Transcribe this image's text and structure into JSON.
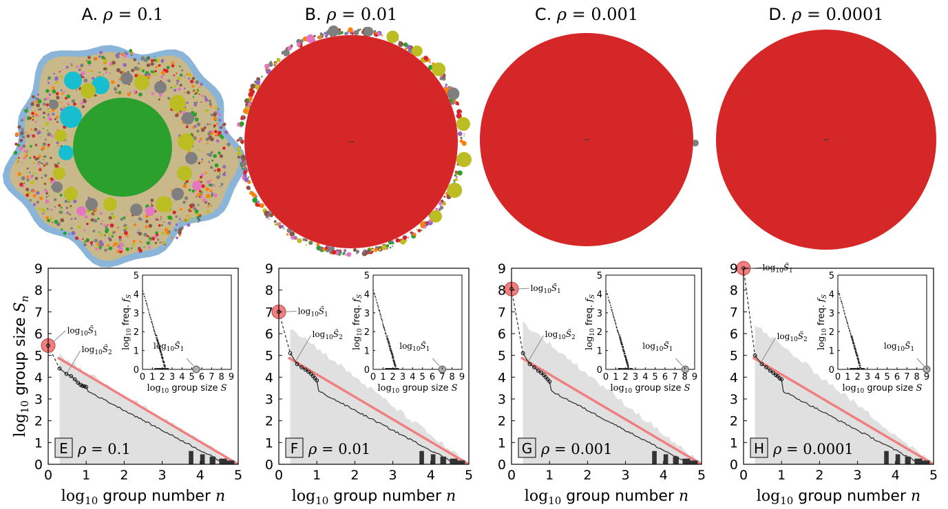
{
  "chart_data": {
    "top_panels": [
      {
        "id": "A",
        "title": "A. ρ = 0.1",
        "rho": 0.1,
        "main_color": "#2ca02c"
      },
      {
        "id": "B",
        "title": "B. ρ = 0.01",
        "rho": 0.01,
        "main_color": "#d62728"
      },
      {
        "id": "C",
        "title": "C. ρ = 0.001",
        "rho": 0.001,
        "main_color": "#d62728"
      },
      {
        "id": "D",
        "title": "D. ρ = 0.0001",
        "rho": 0.0001,
        "main_color": "#d62728"
      }
    ],
    "bottom_panels": [
      {
        "id": "E",
        "type": "line",
        "panel_label": "E",
        "rho_text": "ρ = 0.1",
        "largest_log_size": 5.45,
        "second_log_size": 4.4,
        "leading_points": [
          [
            0.3,
            4.4
          ],
          [
            0.48,
            4.15
          ],
          [
            0.6,
            4.05
          ],
          [
            0.7,
            3.9
          ],
          [
            0.78,
            3.75
          ],
          [
            0.85,
            3.65
          ],
          [
            0.9,
            3.6
          ],
          [
            0.95,
            3.58
          ],
          [
            1.0,
            3.55
          ]
        ],
        "gray_band_top": 5.0,
        "inset_largest_x": 5.45
      },
      {
        "id": "F",
        "type": "line",
        "panel_label": "F",
        "rho_text": "ρ = 0.01",
        "largest_log_size": 7.0,
        "second_log_size": 5.1,
        "leading_points": [
          [
            0.3,
            5.1
          ],
          [
            0.48,
            4.6
          ],
          [
            0.6,
            4.45
          ],
          [
            0.7,
            4.35
          ],
          [
            0.78,
            4.25
          ],
          [
            0.85,
            4.15
          ],
          [
            0.9,
            4.05
          ],
          [
            0.95,
            3.95
          ],
          [
            1.0,
            3.85
          ]
        ],
        "gray_band_top": 6.3,
        "inset_largest_x": 7.0
      },
      {
        "id": "G",
        "type": "line",
        "panel_label": "G",
        "rho_text": "ρ = 0.001",
        "largest_log_size": 8.05,
        "second_log_size": 5.1,
        "leading_points": [
          [
            0.3,
            5.1
          ],
          [
            0.48,
            4.6
          ],
          [
            0.6,
            4.45
          ],
          [
            0.7,
            4.3
          ],
          [
            0.78,
            4.2
          ],
          [
            0.85,
            4.1
          ],
          [
            0.9,
            4.0
          ],
          [
            0.95,
            3.9
          ],
          [
            1.0,
            3.8
          ]
        ],
        "gray_band_top": 6.5,
        "inset_largest_x": 8.05
      },
      {
        "id": "H",
        "type": "line",
        "panel_label": "H",
        "rho_text": "ρ = 0.0001",
        "largest_log_size": 9.0,
        "second_log_size": 5.0,
        "leading_points": [
          [
            0.3,
            5.0
          ],
          [
            0.48,
            4.6
          ],
          [
            0.6,
            4.45
          ],
          [
            0.7,
            4.3
          ],
          [
            0.78,
            4.2
          ],
          [
            0.85,
            4.1
          ],
          [
            0.9,
            4.05
          ],
          [
            0.95,
            3.95
          ],
          [
            1.0,
            3.9
          ]
        ],
        "gray_band_top": 6.4,
        "inset_largest_x": 9.0
      }
    ],
    "main_axes": {
      "xlim": [
        0,
        5
      ],
      "ylim": [
        0,
        9
      ],
      "xticks": [
        "0",
        "1",
        "2",
        "3",
        "4",
        "5"
      ],
      "yticks": [
        "0",
        "1",
        "2",
        "3",
        "4",
        "5",
        "6",
        "7",
        "8",
        "9"
      ]
    },
    "inset_axes": {
      "xlim": [
        0,
        9
      ],
      "ylim": [
        0,
        5
      ],
      "xticks": [
        "0",
        "1",
        "2",
        "3",
        "4",
        "5",
        "6",
        "7",
        "8",
        "9"
      ],
      "yticks": [
        "0",
        "1",
        "2",
        "3",
        "4",
        "5"
      ]
    },
    "trend_line": {
      "x": [
        0.25,
        5
      ],
      "y": [
        4.9,
        0
      ],
      "color": "#f08080"
    },
    "labels": {
      "ylabel_pre": "log",
      "ylabel_sub": "10",
      "ylabel_mid": " group size ",
      "ylabel_var": "S",
      "ylabel_varsub": "n",
      "xlabel_pre": "log",
      "xlabel_sub": "10",
      "xlabel_mid": " group number ",
      "xlabel_var": "n",
      "inset_xlabel_pre": "log",
      "inset_xlabel_sub": "10",
      "inset_xlabel_mid": " group size ",
      "inset_xlabel_var": "S",
      "inset_ylabel_pre": "log",
      "inset_ylabel_sub": "10",
      "inset_ylabel_mid": " freq. ",
      "inset_ylabel_var": "f",
      "inset_ylabel_varsub": "S",
      "s1_pre": "log",
      "s1_sub": "10",
      "s1_var": "S̃",
      "s1_varsub": "1",
      "s2_pre": "log",
      "s2_sub": "10",
      "s2_var": "S̃",
      "s2_varsub": "2"
    },
    "colors": {
      "band": "#e0e0e0",
      "data": "#333333",
      "largest_marker": "#f08080",
      "inset_marker": "#b0b0b0",
      "label_box": "#dcdcdc",
      "green": "#2ca02c",
      "red": "#d62728",
      "cyan": "#17becf",
      "olive": "#bcbd22",
      "gray": "#7f7f7f",
      "pink": "#e377c2",
      "brown": "#8c564b",
      "purple": "#9467bd",
      "blue_edge": "#8ab4d8"
    }
  }
}
